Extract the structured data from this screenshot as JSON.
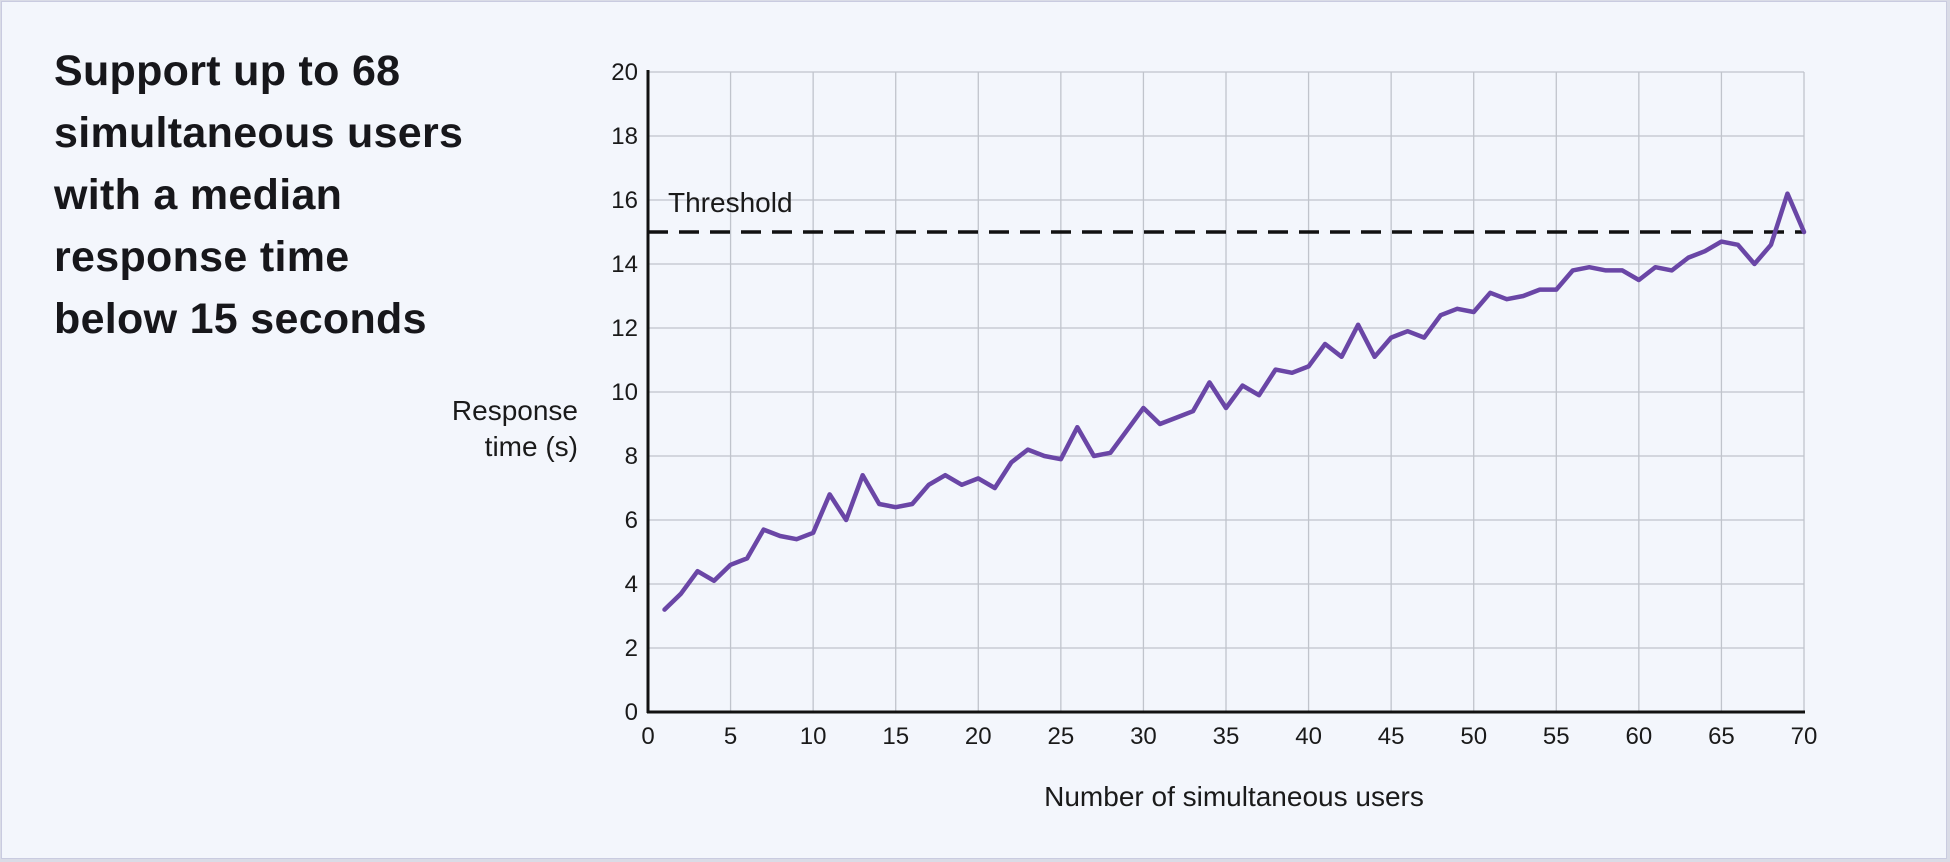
{
  "headline_lines": [
    "Support up to 68",
    "simultaneous users",
    "with a median",
    "response time",
    "below 15 seconds"
  ],
  "colors": {
    "series": "#6a46a6",
    "threshold": "#111111",
    "grid": "#c0c4cc",
    "axis": "#111111"
  },
  "chart_data": {
    "type": "line",
    "title": "",
    "xlabel": "Number of simultaneous users",
    "ylabel_lines": [
      "Response",
      "time (s)"
    ],
    "xlim": [
      0,
      70
    ],
    "ylim": [
      0,
      20
    ],
    "xticks": [
      0,
      5,
      10,
      15,
      20,
      25,
      30,
      35,
      40,
      45,
      50,
      55,
      60,
      65,
      70
    ],
    "yticks": [
      0,
      2,
      4,
      6,
      8,
      10,
      12,
      14,
      16,
      18,
      20
    ],
    "grid": true,
    "threshold": {
      "label": "Threshold",
      "value": 15
    },
    "series": [
      {
        "x": [
          1,
          2,
          3,
          4,
          5,
          6,
          7,
          8,
          9,
          10,
          11,
          12,
          13,
          14,
          15,
          16,
          17,
          18,
          19,
          20,
          21,
          22,
          23,
          24,
          25,
          26,
          27,
          28,
          29,
          30,
          31,
          32,
          33,
          34,
          35,
          36,
          37,
          38,
          39,
          40,
          41,
          42,
          43,
          44,
          45,
          46,
          47,
          48,
          49,
          50,
          51,
          52,
          53,
          54,
          55,
          56,
          57,
          58,
          59,
          60,
          61,
          62,
          63,
          64,
          65,
          66,
          67,
          68,
          69,
          70
        ],
        "values": [
          3.2,
          3.7,
          4.4,
          4.1,
          4.6,
          4.8,
          5.7,
          5.5,
          5.4,
          5.6,
          6.8,
          6.0,
          7.4,
          6.5,
          6.4,
          6.5,
          7.1,
          7.4,
          7.1,
          7.3,
          7.0,
          7.8,
          8.2,
          8.0,
          7.9,
          8.9,
          8.0,
          8.1,
          8.8,
          9.5,
          9.0,
          9.2,
          9.4,
          10.3,
          9.5,
          10.2,
          9.9,
          10.7,
          10.6,
          10.8,
          11.5,
          11.1,
          12.1,
          11.1,
          11.7,
          11.9,
          11.7,
          12.4,
          12.6,
          12.5,
          13.1,
          12.9,
          13.0,
          13.2,
          13.2,
          13.8,
          13.9,
          13.8,
          13.8,
          13.5,
          13.9,
          13.8,
          14.2,
          14.4,
          14.7,
          14.6,
          14.0,
          14.6,
          16.2,
          15.0
        ]
      }
    ]
  }
}
